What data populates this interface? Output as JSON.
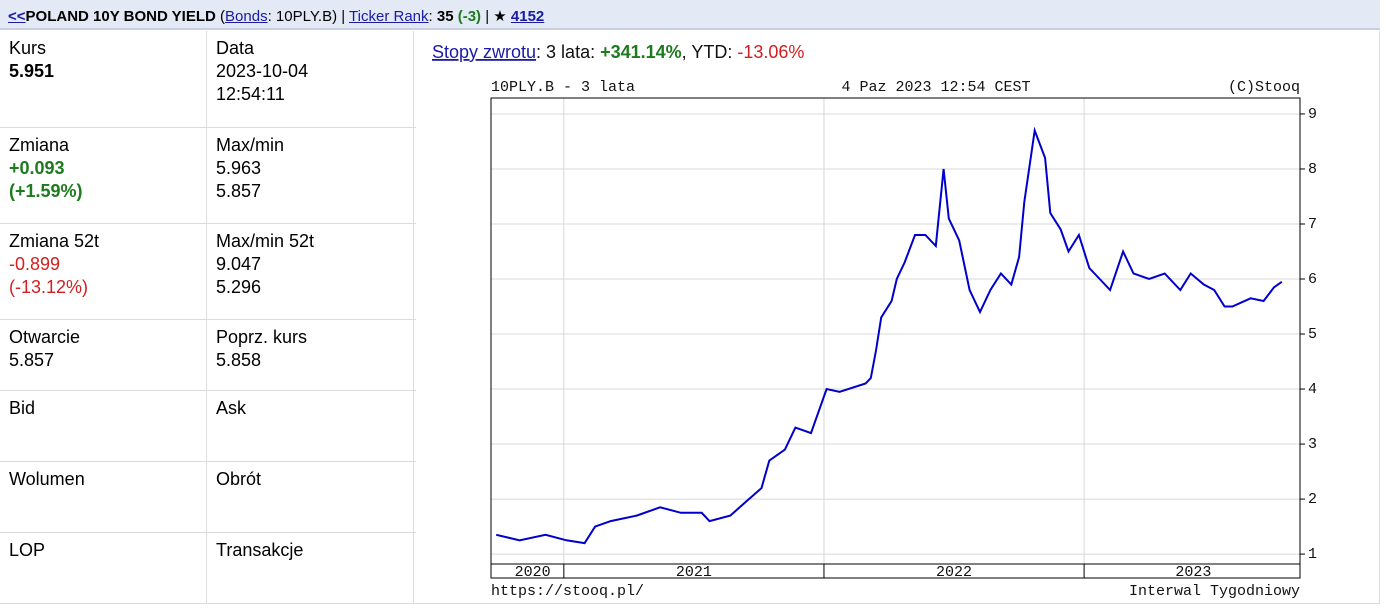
{
  "header": {
    "back": "<<",
    "title": "POLAND 10Y BOND YIELD",
    "open_paren": " (",
    "category_link": "Bonds",
    "symbol": ": 10PLY.B)",
    "sep1": " | ",
    "rank_label": "Ticker Rank",
    "rank_colon": ": ",
    "rank": "35",
    "rank_change": " (-3)",
    "sep2": " | ★ ",
    "count": "4152"
  },
  "quote_table": {
    "rows": [
      [
        {
          "label": "Kurs",
          "lines": [
            "5.951"
          ]
        },
        {
          "label": "Data",
          "lines": [
            "2023-10-04",
            "12:54:11"
          ]
        }
      ],
      [
        {
          "label": "Zmiana",
          "lines": [
            "+0.093",
            "(+1.59%)"
          ]
        },
        {
          "label": "Max/min",
          "lines": [
            "5.963",
            "5.857"
          ]
        }
      ],
      [
        {
          "label": "Zmiana 52t",
          "lines": [
            "-0.899",
            "(-13.12%)"
          ]
        },
        {
          "label": "Max/min 52t",
          "lines": [
            "9.047",
            "5.296"
          ]
        }
      ],
      [
        {
          "label": "Otwarcie",
          "lines": [
            "5.857"
          ]
        },
        {
          "label": "Poprz. kurs",
          "lines": [
            "5.858"
          ]
        }
      ],
      [
        {
          "label": "Bid",
          "lines": []
        },
        {
          "label": "Ask",
          "lines": []
        }
      ],
      [
        {
          "label": "Wolumen",
          "lines": []
        },
        {
          "label": "Obrót",
          "lines": []
        }
      ],
      [
        {
          "label": "LOP",
          "lines": []
        },
        {
          "label": "Transakcje",
          "lines": []
        }
      ]
    ]
  },
  "returns": {
    "label": "Stopy zwrotu",
    "period": ": 3 lata: ",
    "value": "+341.14%",
    "ytd_label": ", YTD: ",
    "ytd": "-13.06%"
  },
  "chart_data": {
    "type": "line",
    "title": "10PLY.B - 3 lata",
    "subtitle": "4 Paz 2023 12:54 CEST",
    "source": "(C)Stooq",
    "footer_left": "https://stooq.pl/",
    "footer_right": "Interwal Tygodniowy",
    "color": "#0000cc",
    "grid": true,
    "x": [
      2020.74,
      2020.83,
      2020.93,
      2021.01,
      2021.08,
      2021.12,
      2021.18,
      2021.28,
      2021.37,
      2021.45,
      2021.53,
      2021.56,
      2021.64,
      2021.7,
      2021.76,
      2021.79,
      2021.85,
      2021.89,
      2021.95,
      2021.98,
      2022.01,
      2022.06,
      2022.16,
      2022.18,
      2022.2,
      2022.22,
      2022.26,
      2022.28,
      2022.31,
      2022.35,
      2022.39,
      2022.43,
      2022.46,
      2022.48,
      2022.52,
      2022.56,
      2022.6,
      2022.64,
      2022.68,
      2022.72,
      2022.75,
      2022.77,
      2022.81,
      2022.85,
      2022.87,
      2022.91,
      2022.94,
      2022.98,
      2023.02,
      2023.06,
      2023.1,
      2023.15,
      2023.19,
      2023.25,
      2023.31,
      2023.37,
      2023.41,
      2023.46,
      2023.5,
      2023.54,
      2023.57,
      2023.64,
      2023.69,
      2023.73,
      2023.76
    ],
    "values": [
      1.35,
      1.25,
      1.35,
      1.25,
      1.2,
      1.5,
      1.6,
      1.7,
      1.85,
      1.75,
      1.75,
      1.6,
      1.7,
      1.95,
      2.2,
      2.7,
      2.9,
      3.3,
      3.2,
      3.6,
      4.0,
      3.95,
      4.1,
      4.2,
      4.7,
      5.3,
      5.6,
      6.0,
      6.3,
      6.8,
      6.8,
      6.6,
      8.0,
      7.1,
      6.7,
      5.8,
      5.4,
      5.8,
      6.1,
      5.9,
      6.4,
      7.4,
      8.7,
      8.2,
      7.2,
      6.9,
      6.5,
      6.8,
      6.2,
      6.0,
      5.8,
      6.5,
      6.1,
      6.0,
      6.1,
      5.8,
      6.1,
      5.9,
      5.8,
      5.5,
      5.5,
      5.65,
      5.6,
      5.85,
      5.95
    ],
    "xlim": [
      2020.72,
      2023.83
    ],
    "ylim": [
      0.82,
      9.29
    ],
    "yticks": [
      1,
      2,
      3,
      4,
      5,
      6,
      7,
      8,
      9
    ],
    "xgrid": [
      2021,
      2022,
      2023
    ],
    "xticks": [
      {
        "value": 2020.88,
        "label": "2020"
      },
      {
        "value": 2021.5,
        "label": "2021"
      },
      {
        "value": 2022.5,
        "label": "2022"
      },
      {
        "value": 2023.42,
        "label": "2023"
      }
    ]
  }
}
